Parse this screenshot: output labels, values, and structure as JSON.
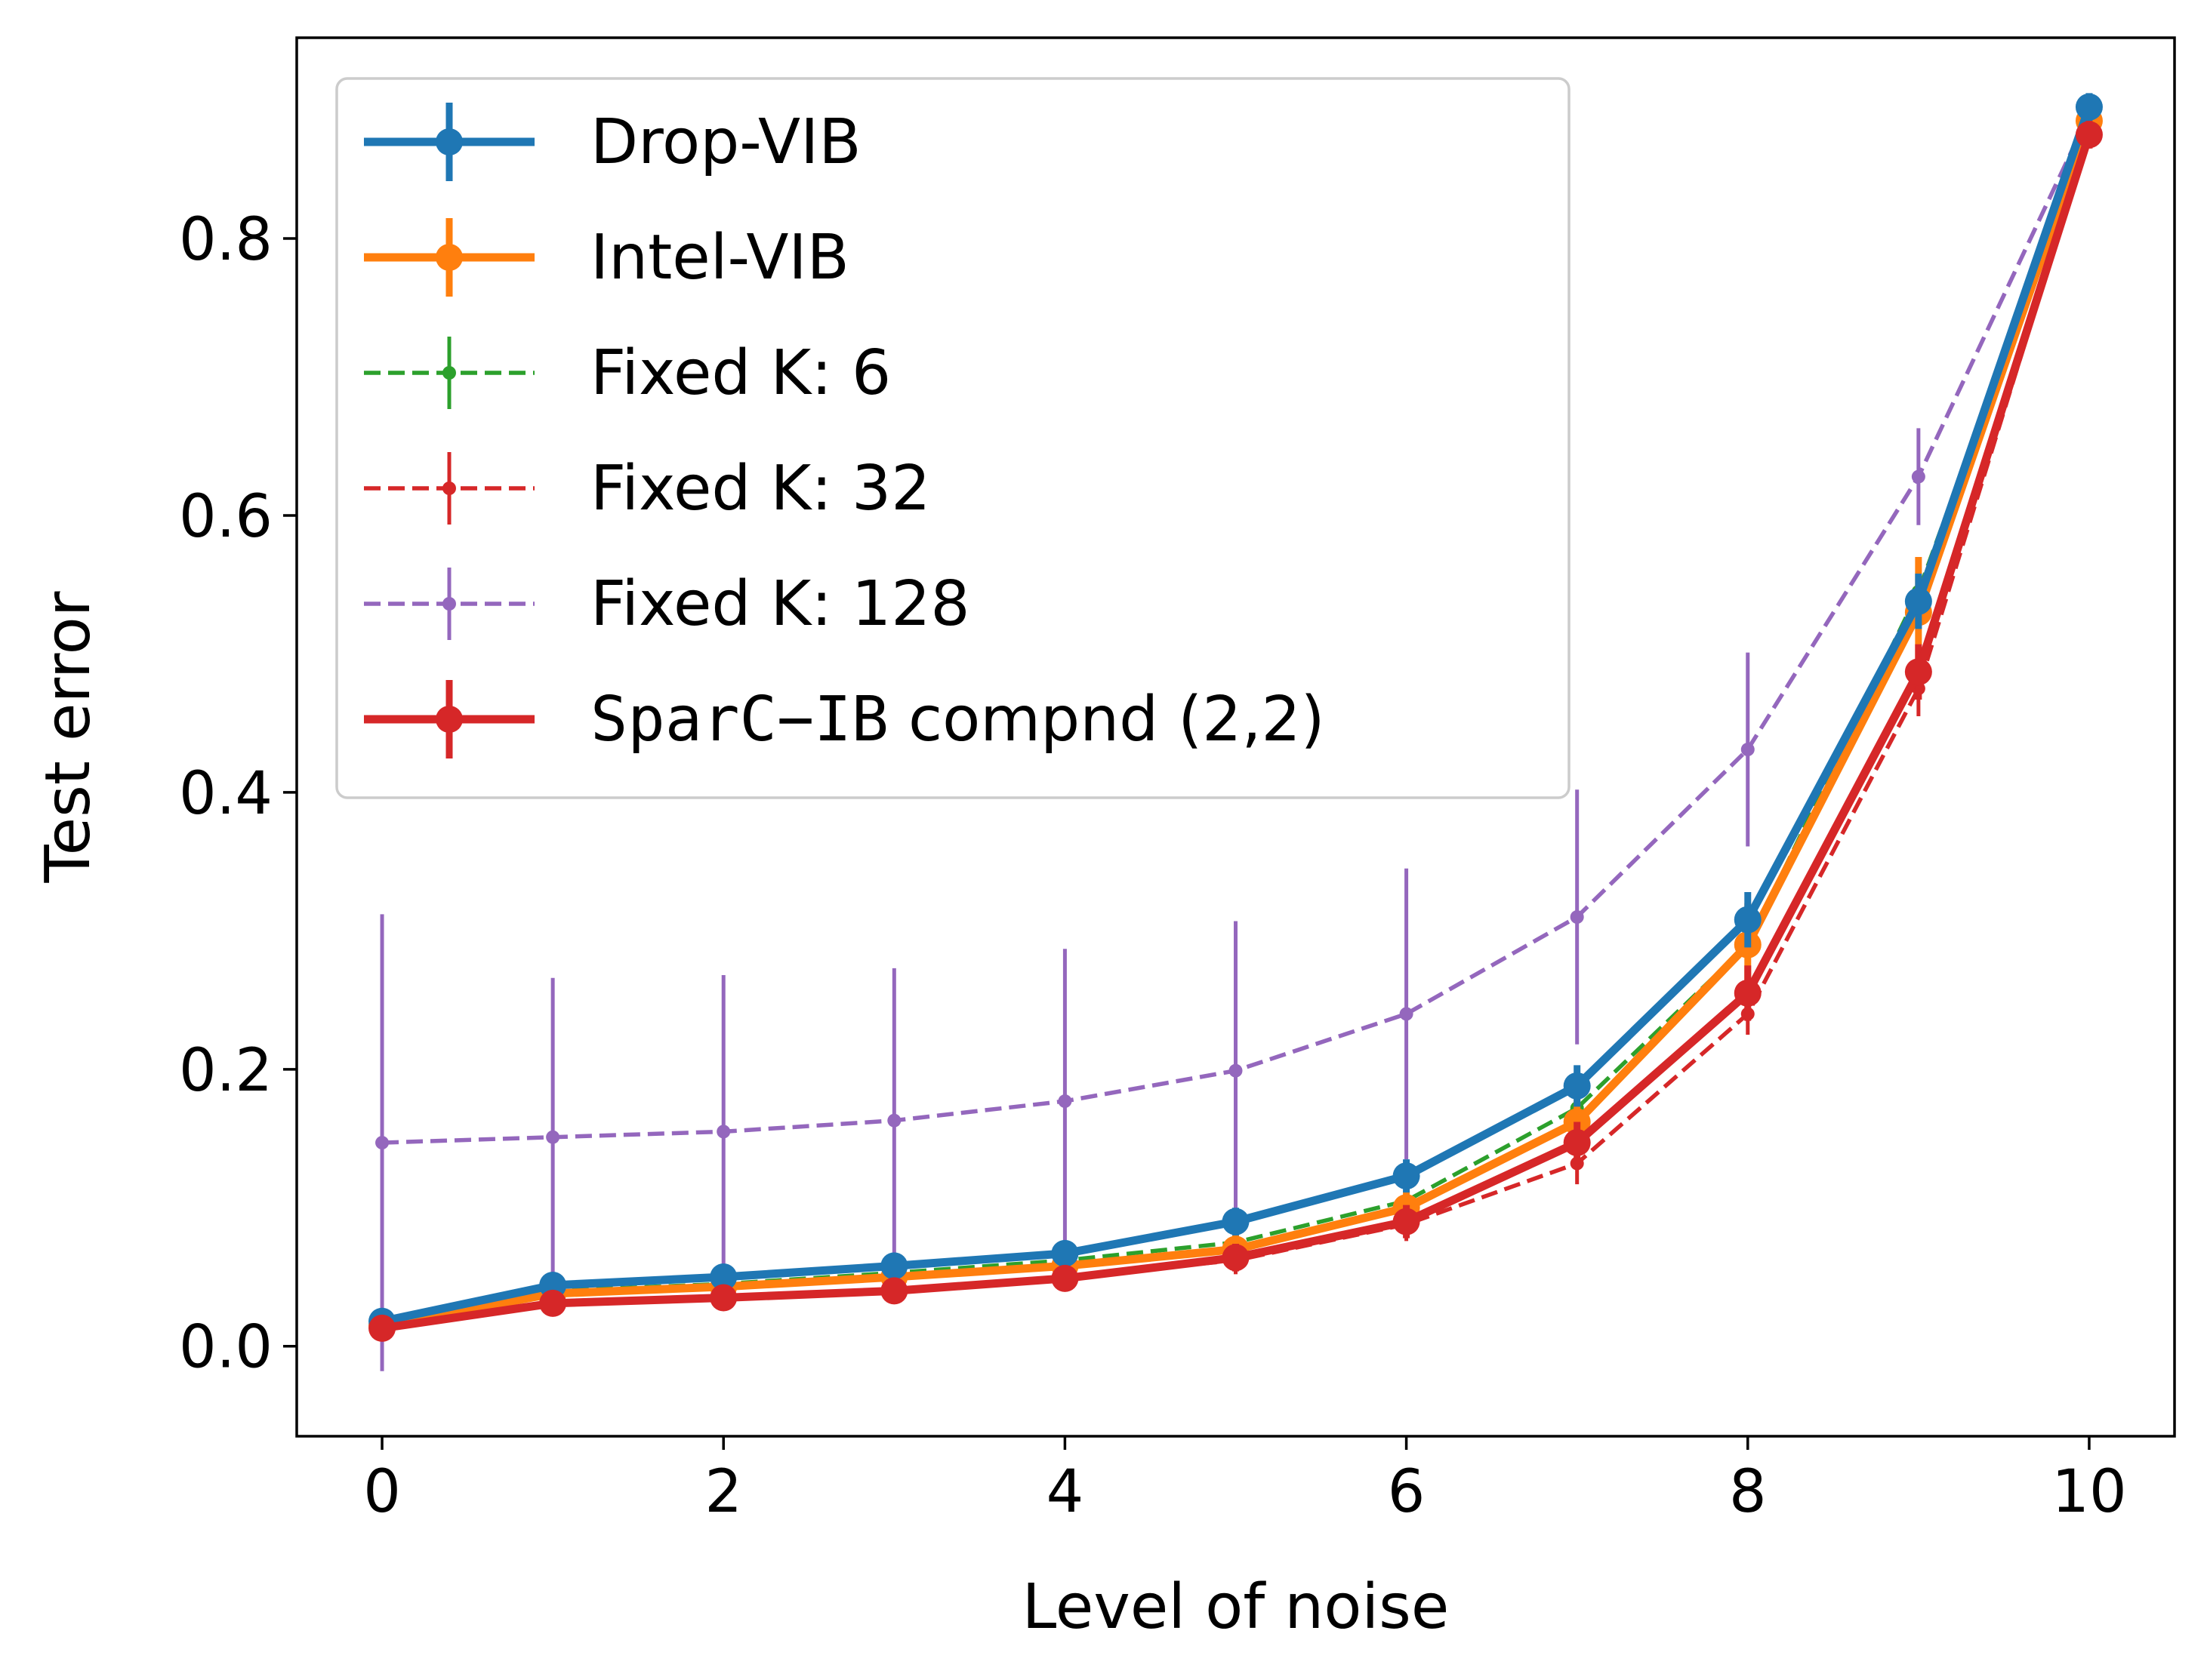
{
  "chart_data": {
    "type": "line",
    "title": "",
    "xlabel": "Level of noise",
    "ylabel": "Test error",
    "xlim": [
      -0.5,
      10.5
    ],
    "ylim": [
      -0.065,
      0.945
    ],
    "xticks": [
      0,
      2,
      4,
      6,
      8,
      10
    ],
    "xtick_labels": [
      "0",
      "2",
      "4",
      "6",
      "8",
      "10"
    ],
    "yticks": [
      0.0,
      0.2,
      0.4,
      0.6,
      0.8
    ],
    "ytick_labels": [
      "0.0",
      "0.2",
      "0.4",
      "0.6",
      "0.8"
    ],
    "grid": false,
    "legend_position": "top-left",
    "x": [
      0,
      1,
      2,
      3,
      4,
      5,
      6,
      7,
      8,
      9,
      10
    ],
    "series": [
      {
        "name": "Drop-VIB",
        "legend_label": "Drop-VIB",
        "color": "#1f77b4",
        "style": "solid-thick",
        "values": [
          0.018,
          0.044,
          0.05,
          0.058,
          0.067,
          0.09,
          0.123,
          0.188,
          0.308,
          0.538,
          0.895
        ],
        "errors": [
          0.008,
          0.008,
          0.008,
          0.008,
          0.008,
          0.01,
          0.012,
          0.015,
          0.02,
          0.02,
          0.01
        ]
      },
      {
        "name": "Intel-VIB",
        "legend_label": "Intel-VIB",
        "color": "#ff7f0e",
        "style": "solid-thick",
        "values": [
          0.015,
          0.038,
          0.043,
          0.05,
          0.058,
          0.07,
          0.1,
          0.162,
          0.29,
          0.53,
          0.885
        ],
        "errors": [
          0.008,
          0.008,
          0.008,
          0.008,
          0.008,
          0.01,
          0.012,
          0.018,
          0.03,
          0.04,
          0.01
        ]
      },
      {
        "name": "Fixed K: 6",
        "legend_label": "Fixed K: 6",
        "color": "#2ca02c",
        "style": "dashed",
        "values": [
          0.016,
          0.04,
          0.045,
          0.053,
          0.062,
          0.075,
          0.105,
          0.172,
          0.29,
          0.545,
          0.885
        ],
        "errors": [
          0.008,
          0.008,
          0.008,
          0.008,
          0.008,
          0.01,
          0.012,
          0.015,
          0.02,
          0.02,
          0.01
        ]
      },
      {
        "name": "Fixed K: 32",
        "legend_label": "Fixed K: 32",
        "color": "#d62728",
        "style": "dashed",
        "values": [
          0.012,
          0.03,
          0.035,
          0.04,
          0.05,
          0.062,
          0.088,
          0.132,
          0.24,
          0.475,
          0.875
        ],
        "errors": [
          0.008,
          0.008,
          0.008,
          0.008,
          0.008,
          0.01,
          0.012,
          0.015,
          0.015,
          0.02,
          0.01
        ]
      },
      {
        "name": "Fixed K: 128",
        "legend_label": "Fixed K: 128",
        "color": "#9467bd",
        "style": "dashed",
        "values": [
          0.147,
          0.151,
          0.155,
          0.163,
          0.177,
          0.199,
          0.24,
          0.31,
          0.431,
          0.628,
          0.89
        ],
        "errors": [
          0.165,
          0.115,
          0.113,
          0.11,
          0.11,
          0.108,
          0.105,
          0.092,
          0.07,
          0.035,
          0.01
        ]
      },
      {
        "name": "SparC-IB compnd (2,2)",
        "legend_label_mono": "SparC−IB",
        "legend_label_rest": " compnd (2,2)",
        "color": "#d62728",
        "style": "solid-thick",
        "values": [
          0.013,
          0.031,
          0.035,
          0.04,
          0.049,
          0.064,
          0.09,
          0.147,
          0.255,
          0.487,
          0.875
        ],
        "errors": [
          0.008,
          0.008,
          0.008,
          0.008,
          0.008,
          0.01,
          0.012,
          0.015,
          0.02,
          0.02,
          0.01
        ]
      }
    ]
  }
}
